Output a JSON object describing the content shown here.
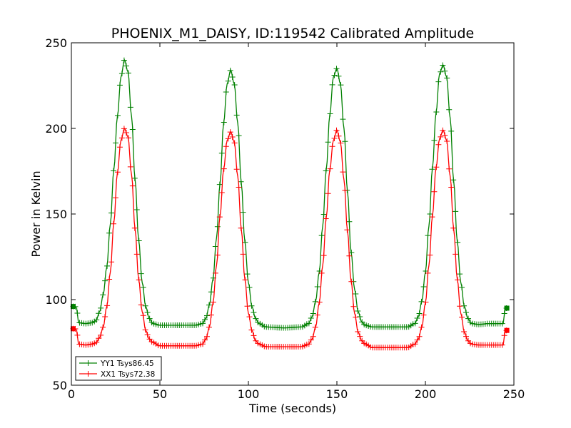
{
  "chart_data": {
    "type": "line",
    "title": "PHOENIX_M1_DAISY, ID:119542 Calibrated Amplitude",
    "xlabel": "Time (seconds)",
    "ylabel": "Power in Kelvin",
    "xlim": [
      0,
      250
    ],
    "ylim": [
      50,
      250
    ],
    "xticks": [
      0,
      50,
      100,
      150,
      200,
      250
    ],
    "yticks": [
      50,
      100,
      150,
      200,
      250
    ],
    "xtick_labels": [
      "0",
      "50",
      "100",
      "150",
      "200",
      "250"
    ],
    "ytick_labels": [
      "50",
      "100",
      "150",
      "200",
      "250"
    ],
    "grid": false,
    "legend_position": "lower-left",
    "marker": "+",
    "series": [
      {
        "name": "YY1 Tsys86.45",
        "color": "#008000",
        "x": [
          1,
          2,
          3,
          4,
          8,
          12,
          14,
          16,
          18,
          20,
          22,
          24,
          26,
          28,
          30,
          32,
          34,
          36,
          38,
          40,
          42,
          44,
          46,
          50,
          60,
          70,
          74,
          76,
          78,
          80,
          82,
          84,
          86,
          88,
          90,
          92,
          94,
          96,
          98,
          100,
          102,
          104,
          106,
          110,
          120,
          130,
          134,
          136,
          138,
          140,
          142,
          144,
          146,
          148,
          150,
          152,
          154,
          156,
          158,
          160,
          162,
          164,
          166,
          170,
          180,
          190,
          194,
          196,
          198,
          200,
          202,
          204,
          206,
          208,
          210,
          212,
          214,
          216,
          218,
          220,
          222,
          224,
          226,
          230,
          236,
          240,
          243,
          244,
          245,
          246
        ],
        "values": [
          96,
          96,
          95,
          86.5,
          86,
          86.5,
          88,
          93,
          103,
          119,
          144,
          176,
          207,
          230,
          240,
          233,
          207,
          170,
          135,
          110,
          96,
          89,
          86,
          85,
          85,
          85,
          86,
          89,
          97,
          112,
          136,
          168,
          203,
          226,
          234,
          226,
          203,
          168,
          134,
          110,
          96,
          89,
          86,
          84,
          83.5,
          84,
          86,
          90,
          99,
          116,
          143,
          176,
          208,
          230,
          235,
          226,
          200,
          163,
          128,
          106,
          93,
          87,
          85,
          84,
          84,
          84,
          86,
          90,
          99,
          116,
          143,
          177,
          209,
          232,
          237,
          230,
          206,
          169,
          134,
          110,
          96,
          89,
          86,
          85.5,
          86,
          86,
          86,
          86,
          95,
          95
        ]
      },
      {
        "name": "XX1 Tsys72.38",
        "color": "#ff0000",
        "x": [
          1,
          2,
          3,
          4,
          8,
          12,
          14,
          16,
          18,
          20,
          22,
          24,
          26,
          28,
          30,
          32,
          34,
          36,
          38,
          40,
          42,
          44,
          46,
          50,
          60,
          70,
          74,
          76,
          78,
          80,
          82,
          84,
          86,
          88,
          90,
          92,
          94,
          96,
          98,
          100,
          102,
          104,
          106,
          110,
          120,
          130,
          134,
          136,
          138,
          140,
          142,
          144,
          146,
          148,
          150,
          152,
          154,
          156,
          158,
          160,
          162,
          164,
          166,
          170,
          180,
          190,
          194,
          196,
          198,
          200,
          202,
          204,
          206,
          208,
          210,
          212,
          214,
          216,
          218,
          220,
          222,
          224,
          226,
          230,
          236,
          240,
          243,
          244,
          245,
          246
        ],
        "values": [
          83,
          83,
          82,
          74,
          73.5,
          74,
          75,
          78,
          84,
          96,
          116,
          145,
          174,
          193,
          200,
          195,
          173,
          141,
          112,
          93,
          82,
          77,
          75,
          73,
          73,
          73,
          74,
          77,
          84,
          98,
          120,
          149,
          176,
          193,
          198,
          192,
          172,
          141,
          112,
          92,
          82,
          76,
          74,
          72.5,
          72.5,
          72.5,
          74,
          77,
          84,
          98,
          120,
          148,
          176,
          193,
          199,
          192,
          170,
          140,
          111,
          92,
          81,
          76,
          74,
          72,
          72,
          72,
          74,
          77,
          84,
          98,
          120,
          149,
          177,
          194,
          199,
          193,
          172,
          141,
          112,
          92,
          81,
          76,
          74,
          73.5,
          73.5,
          73.5,
          73.5,
          73.5,
          82,
          82
        ]
      }
    ]
  }
}
